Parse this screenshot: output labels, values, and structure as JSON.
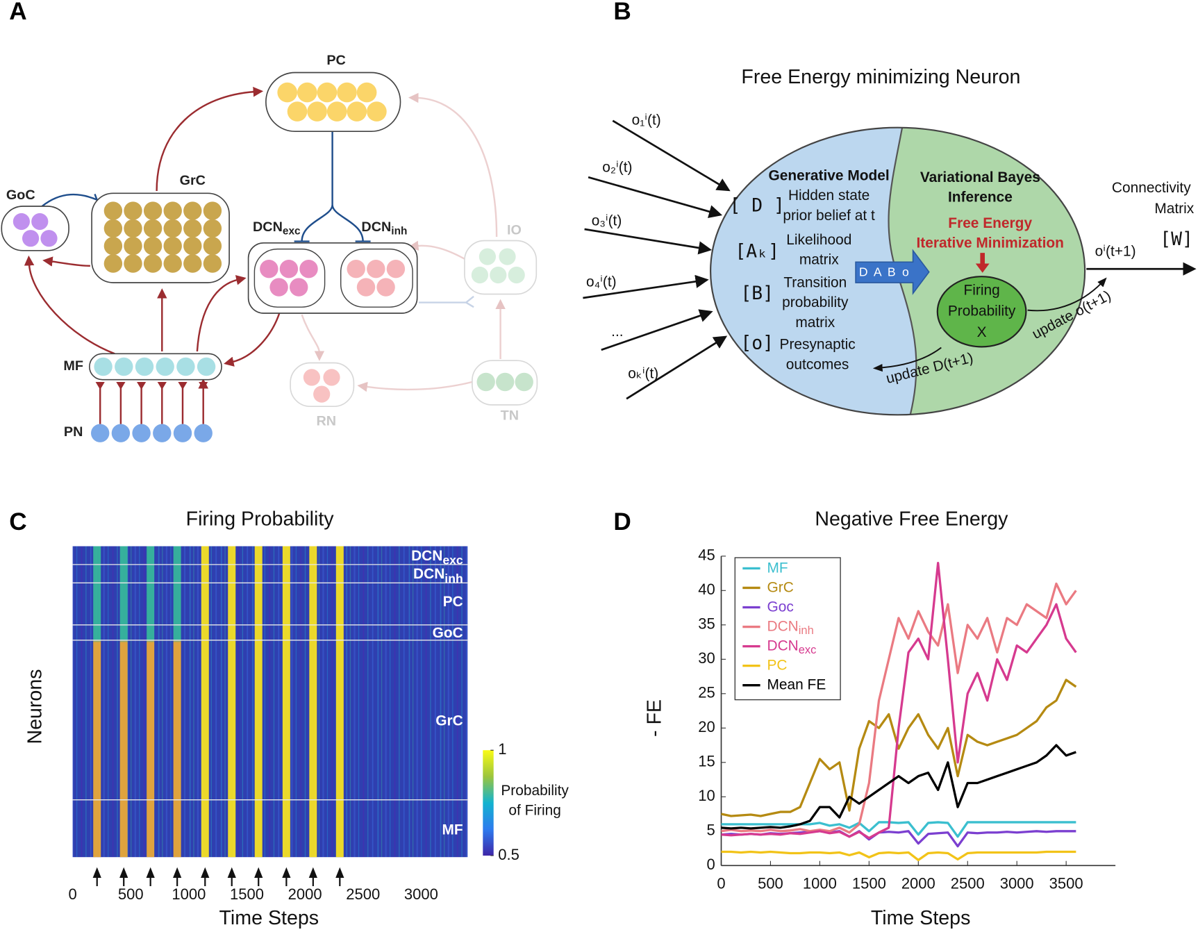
{
  "panel_labels": [
    "A",
    "B",
    "C",
    "D"
  ],
  "diagram_a": {
    "nodes": [
      {
        "label": "PC"
      },
      {
        "label": "GrC"
      },
      {
        "label": "GoC"
      },
      {
        "label": "DCN",
        "sub": "exc"
      },
      {
        "label": "DCN",
        "sub": "inh"
      },
      {
        "label": "IO"
      },
      {
        "label": "MF"
      },
      {
        "label": "PN"
      },
      {
        "label": "RN"
      },
      {
        "label": "TN"
      }
    ]
  },
  "diagram_b": {
    "title": "Free Energy minimizing Neuron",
    "inputs": [
      "o₁ⁱ(t)",
      "o₂ⁱ(t)",
      "o₃ⁱ(t)",
      "o₄ⁱ(t)",
      "...",
      "oₖⁱ(t)"
    ],
    "generative_model": {
      "heading": "Generative Model",
      "items": [
        {
          "symbol": "[ D ]",
          "lines": [
            "Hidden state",
            "prior belief at t"
          ]
        },
        {
          "symbol": "[Aₖ]",
          "lines": [
            "Likelihood",
            "matrix"
          ]
        },
        {
          "symbol": "[B]",
          "lines": [
            "Transition",
            "probability",
            "matrix"
          ]
        },
        {
          "symbol": "[o]",
          "lines": [
            "Presynaptic",
            "outcomes"
          ]
        }
      ]
    },
    "arrow_label": "D A B o",
    "inference": {
      "heading": [
        "Variational Bayes",
        "Inference"
      ],
      "highlight": [
        "Free Energy",
        "Iterative Minimization"
      ],
      "node": [
        "Firing",
        "Probability",
        "X"
      ]
    },
    "update_o": "update o(t+1)",
    "update_d": "update D(t+1)",
    "output": "oⁱ(t+1)",
    "connectivity": [
      "Connectivity",
      "Matrix"
    ],
    "matrix_symbol": "[W]"
  },
  "chart_data": [
    {
      "type": "heatmap",
      "title": "Firing Probability",
      "xlabel": "Time Steps",
      "ylabel": "Neurons",
      "xlim": [
        0,
        3400
      ],
      "xticks": [
        0,
        500,
        1000,
        1500,
        2000,
        2500,
        3000
      ],
      "stimulus_times": [
        210,
        440,
        670,
        900,
        1140,
        1370,
        1600,
        1840,
        2070,
        2300
      ],
      "row_groups": [
        {
          "name": "DCN",
          "sub": "exc"
        },
        {
          "name": "DCN",
          "sub": "inh"
        },
        {
          "name": "PC"
        },
        {
          "name": "GoC"
        },
        {
          "name": "GrC"
        },
        {
          "name": "MF"
        }
      ],
      "colorbar": {
        "label": [
          "Probability",
          "of Firing"
        ],
        "clim": [
          0.5,
          1
        ],
        "ticks": [
          0.5,
          1
        ]
      }
    },
    {
      "type": "line",
      "title": "Negative Free Energy",
      "xlabel": "Time Steps",
      "ylabel": "- FE",
      "xlim": [
        0,
        4000
      ],
      "ylim": [
        0,
        45
      ],
      "xticks": [
        0,
        500,
        1000,
        1500,
        2000,
        2500,
        3000,
        3500
      ],
      "yticks": [
        0,
        5,
        10,
        15,
        20,
        25,
        30,
        35,
        40,
        45
      ],
      "legend": "upper left",
      "x": [
        0,
        100,
        200,
        300,
        400,
        500,
        600,
        700,
        800,
        900,
        1000,
        1100,
        1200,
        1300,
        1400,
        1500,
        1600,
        1700,
        1800,
        1900,
        2000,
        2100,
        2200,
        2300,
        2400,
        2500,
        2600,
        2700,
        2800,
        2900,
        3000,
        3100,
        3200,
        3300,
        3400,
        3500,
        3600
      ],
      "series": [
        {
          "name": "MF",
          "color": "#3bbfcf",
          "values": [
            6,
            6,
            6,
            6,
            6,
            6,
            6,
            6,
            6,
            6,
            6.2,
            5.8,
            6,
            5.5,
            6.2,
            5,
            6.3,
            6.3,
            6.2,
            6.3,
            4.5,
            6.2,
            6.3,
            6.2,
            4.2,
            6.3,
            6.3,
            6.3,
            6.3,
            6.3,
            6.3,
            6.3,
            6.3,
            6.3,
            6.3,
            6.3,
            6.3
          ]
        },
        {
          "name": "GrC",
          "color": "#b58a12",
          "values": [
            7.5,
            7.2,
            7.3,
            7.4,
            7.2,
            7.5,
            7.8,
            7.8,
            8.5,
            12,
            15.5,
            14,
            15,
            8,
            17,
            21,
            20,
            22,
            17,
            20,
            22,
            19,
            17,
            20,
            13,
            19,
            18,
            17.5,
            18,
            18.5,
            19,
            20,
            21,
            23,
            24,
            27,
            26
          ]
        },
        {
          "name": "Goc",
          "color": "#7b3fd0",
          "values": [
            4.5,
            4.6,
            4.5,
            4.6,
            4.5,
            4.7,
            4.6,
            4.7,
            4.8,
            4.9,
            5,
            4.8,
            5,
            4.2,
            5,
            3.8,
            4.8,
            4.9,
            4.8,
            5,
            3.2,
            4.6,
            4.7,
            4.8,
            2.8,
            4.8,
            4.7,
            4.8,
            4.8,
            4.9,
            4.8,
            4.9,
            5,
            4.9,
            5,
            5,
            5
          ]
        },
        {
          "name": "DCN",
          "name_sub": "inh",
          "color": "#ea7a82",
          "values": [
            5,
            5.2,
            5,
            5.1,
            5,
            5.2,
            5,
            5.1,
            5.3,
            5,
            5.2,
            5,
            5.5,
            4.8,
            6,
            12,
            24,
            30,
            36,
            33,
            37,
            34,
            32,
            38,
            28,
            35,
            33,
            36,
            31,
            36,
            35,
            38,
            37,
            36,
            41,
            38,
            40
          ]
        },
        {
          "name": "DCN",
          "name_sub": "exc",
          "color": "#d63a8f",
          "values": [
            4.5,
            4.4,
            4.5,
            4.6,
            4.5,
            4.6,
            4.5,
            4.7,
            4.6,
            4.8,
            5,
            4.7,
            4.9,
            4.2,
            4.9,
            4,
            4.8,
            5.5,
            20,
            31,
            33,
            30,
            44,
            30,
            15,
            25,
            28,
            24,
            30,
            27,
            32,
            31,
            33,
            35,
            38,
            33,
            31
          ]
        },
        {
          "name": "PC",
          "color": "#f2c318",
          "values": [
            2,
            2,
            1.9,
            2,
            1.9,
            2,
            1.9,
            1.8,
            1.8,
            1.9,
            1.9,
            1.8,
            1.9,
            1.5,
            1.9,
            1.2,
            1.8,
            1.9,
            1.8,
            1.9,
            0.8,
            1.8,
            1.9,
            1.8,
            0.9,
            1.8,
            1.9,
            1.9,
            1.9,
            1.9,
            1.9,
            1.9,
            1.9,
            2,
            2,
            2,
            2
          ]
        },
        {
          "name": "Mean FE",
          "color": "#000000",
          "values": [
            5.5,
            5.4,
            5.5,
            5.4,
            5.5,
            5.6,
            5.5,
            5.7,
            6,
            6.5,
            8.5,
            8.5,
            7,
            10,
            9,
            10,
            11,
            12,
            13,
            12,
            13,
            13.5,
            11,
            15,
            8.5,
            12,
            12,
            12.5,
            13,
            13.5,
            14,
            14.5,
            15,
            16,
            17.5,
            16,
            16.5
          ]
        }
      ]
    }
  ]
}
